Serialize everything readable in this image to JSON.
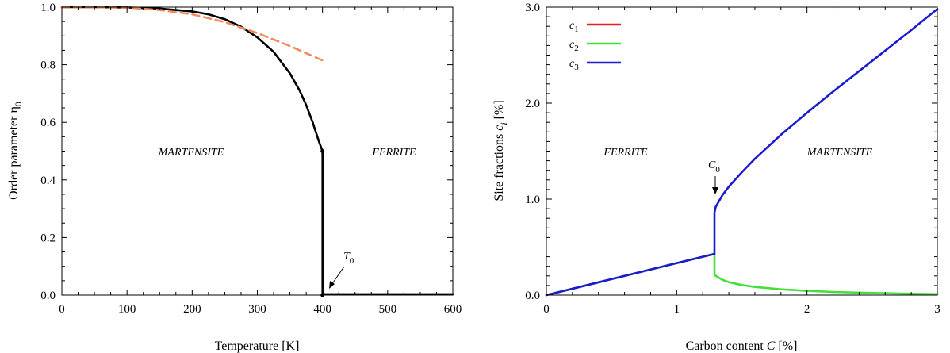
{
  "chart_data": [
    {
      "type": "line",
      "xlabel": "Temperature [K]",
      "ylabel_main": "Order parameter η",
      "ylabel_sub": "0",
      "xlim": [
        0,
        600
      ],
      "ylim": [
        0,
        1.0
      ],
      "xticks": [
        0,
        100,
        200,
        300,
        400,
        500,
        600
      ],
      "xtick_labels": [
        "0",
        "100",
        "200",
        "300",
        "400",
        "500",
        "600"
      ],
      "yticks": [
        0,
        0.2,
        0.4,
        0.6,
        0.8,
        1.0
      ],
      "ytick_labels": [
        "0.0",
        "0.2",
        "0.4",
        "0.6",
        "0.8",
        "1.0"
      ],
      "grid": false,
      "series": [
        {
          "color": "#000000",
          "style": "solid",
          "x": [
            0,
            50,
            100,
            150,
            200,
            225,
            250,
            275,
            300,
            325,
            350,
            365,
            375,
            385,
            390,
            395,
            400,
            400,
            400,
            450,
            500,
            550,
            600
          ],
          "y": [
            1.0,
            1.0,
            0.999,
            0.995,
            0.985,
            0.975,
            0.958,
            0.932,
            0.895,
            0.845,
            0.77,
            0.71,
            0.66,
            0.6,
            0.565,
            0.53,
            0.5,
            0.0,
            0.003,
            0.003,
            0.003,
            0.003,
            0.003
          ]
        },
        {
          "color": "#f28a5c",
          "style": "dashed",
          "x": [
            0,
            50,
            100,
            150,
            200,
            250,
            300,
            350,
            400
          ],
          "y": [
            1.0,
            1.0,
            0.998,
            0.99,
            0.975,
            0.948,
            0.91,
            0.865,
            0.815
          ]
        }
      ],
      "markers": [
        {
          "x": 400,
          "y": 0.5
        },
        {
          "x": 400,
          "y": 0.0
        }
      ],
      "annotations": {
        "region_left": "MARTENSITE",
        "region_right": "FERRITE",
        "t0_main": "T",
        "t0_sub": "0"
      }
    },
    {
      "type": "line",
      "xlabel_pre": "Carbon content ",
      "xlabel_var": "C",
      "xlabel_post": " [%]",
      "ylabel_pre": "Site fractions ",
      "ylabel_var": "c",
      "ylabel_sub": "i",
      "ylabel_post": " [%]",
      "xlim": [
        0,
        3
      ],
      "ylim": [
        0,
        3.0
      ],
      "xticks": [
        0,
        1,
        2,
        3
      ],
      "xtick_labels": [
        "0",
        "1",
        "2",
        "3"
      ],
      "yticks": [
        0,
        1.0,
        2.0,
        3.0
      ],
      "ytick_labels": [
        "0.0",
        "1.0",
        "2.0",
        "3.0"
      ],
      "grid": false,
      "legend_position": "top-left",
      "legend": [
        {
          "main": "c",
          "sub": "1",
          "color": "#e8201e"
        },
        {
          "main": "c",
          "sub": "2",
          "color": "#44e03a"
        },
        {
          "main": "c",
          "sub": "3",
          "color": "#1a1ad0"
        }
      ],
      "series": [
        {
          "color": "#e8201e",
          "x": [
            0,
            1.29
          ],
          "y": [
            0,
            0.43
          ]
        },
        {
          "color": "#44e03a",
          "x": [
            0,
            1.29,
            1.29,
            1.3,
            1.35,
            1.4,
            1.5,
            1.6,
            1.8,
            2.0,
            2.2,
            2.5,
            2.8,
            3.0
          ],
          "y": [
            0,
            0.43,
            0.22,
            0.2,
            0.16,
            0.135,
            0.105,
            0.085,
            0.06,
            0.045,
            0.033,
            0.022,
            0.014,
            0.01
          ]
        },
        {
          "color": "#1a1ad0",
          "x": [
            0,
            1.29,
            1.29,
            1.3,
            1.35,
            1.4,
            1.5,
            1.6,
            1.8,
            2.0,
            2.2,
            2.5,
            2.8,
            3.0
          ],
          "y": [
            0,
            0.43,
            0.86,
            0.92,
            1.04,
            1.13,
            1.28,
            1.42,
            1.67,
            1.9,
            2.12,
            2.44,
            2.76,
            2.98
          ]
        }
      ],
      "annotations": {
        "region_left": "FERRITE",
        "region_right": "MARTENSITE",
        "c0_main": "C",
        "c0_sub": "0"
      }
    }
  ]
}
